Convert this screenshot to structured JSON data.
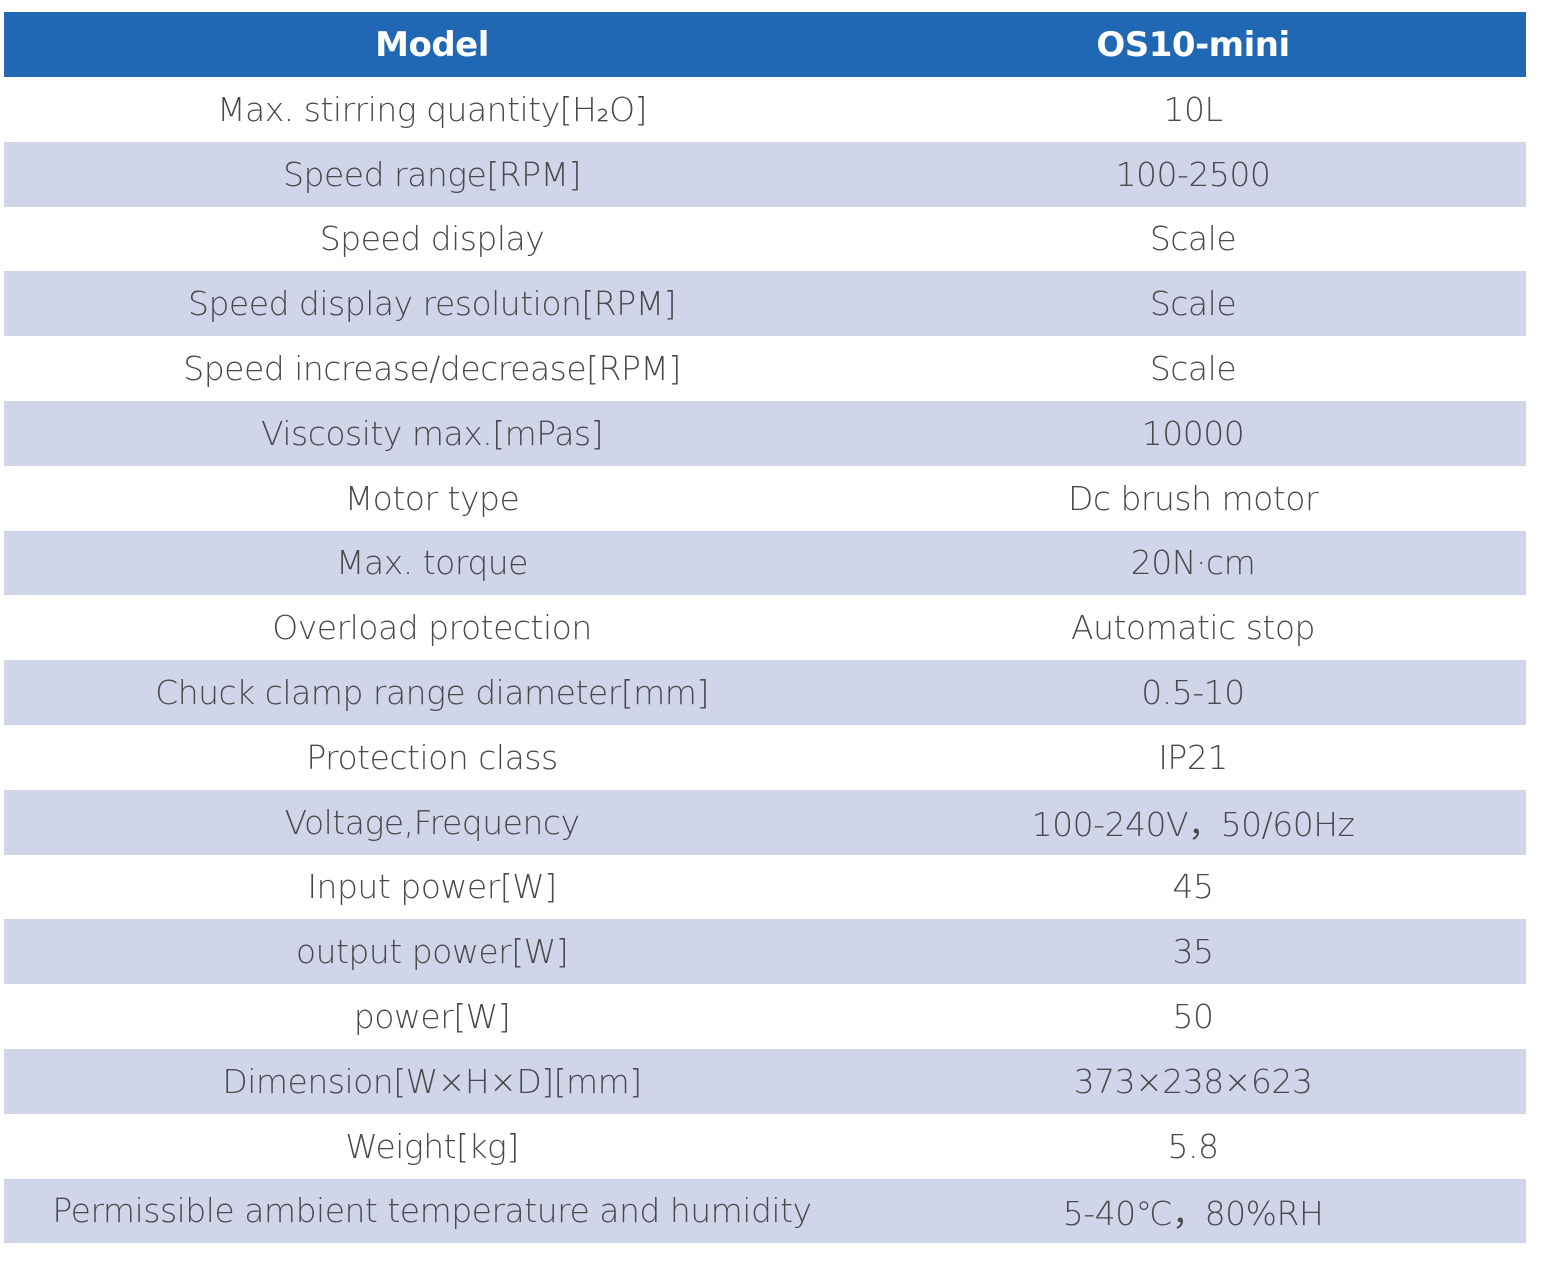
{
  "table": {
    "header": [
      "Model",
      "OS10-mini"
    ],
    "rows": [
      [
        "Max. stirring quantity[H₂O]",
        "10L"
      ],
      [
        "Speed range[RPM]",
        "100-2500"
      ],
      [
        "Speed display",
        "Scale"
      ],
      [
        "Speed display resolution[RPM]",
        "Scale"
      ],
      [
        "Speed increase/decrease[RPM]",
        "Scale"
      ],
      [
        "Viscosity max.[mPas]",
        "10000"
      ],
      [
        "Motor type",
        "Dc brush motor"
      ],
      [
        "Max. torque",
        "20N·cm"
      ],
      [
        "Overload protection",
        "Automatic stop"
      ],
      [
        "Chuck clamp range diameter[mm]",
        "0.5-10"
      ],
      [
        "Protection class",
        "IP21"
      ],
      [
        "Voltage,Frequency",
        "100-240V，50/60Hz"
      ],
      [
        "Input power[W]",
        "45"
      ],
      [
        "output power[W]",
        "35"
      ],
      [
        "power[W]",
        "50"
      ],
      [
        "Dimension[W×H×D][mm]",
        "373×238×623"
      ],
      [
        "Weight[kg]",
        "5.8"
      ],
      [
        "Permissible ambient temperature and humidity",
        "5-40℃，80%RH"
      ]
    ]
  }
}
